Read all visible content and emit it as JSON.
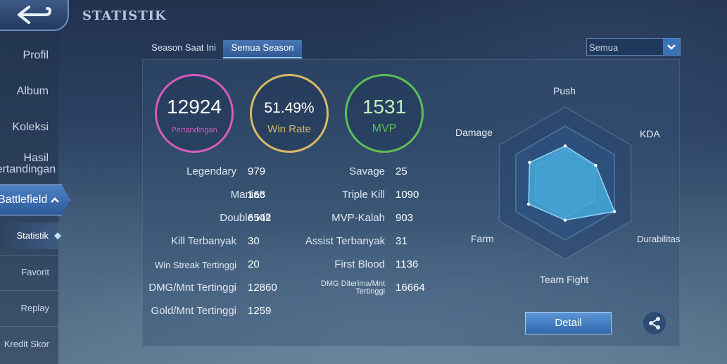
{
  "header": {
    "title": "STATISTIK"
  },
  "sidebar": {
    "items": [
      {
        "label": "Profil"
      },
      {
        "label": "Album"
      },
      {
        "label": "Koleksi"
      },
      {
        "label_line1": "Hasil",
        "label_line2": "Pertandingan"
      },
      {
        "label": "Battlefield"
      }
    ],
    "sub_items": [
      {
        "label": "Statistik"
      },
      {
        "label": "Favorit"
      },
      {
        "label": "Replay"
      },
      {
        "label": "Kredit Skor"
      }
    ]
  },
  "tabs": [
    {
      "label": "Season Saat Ini",
      "active": false
    },
    {
      "label": "Semua Season",
      "active": true
    }
  ],
  "filter": {
    "selected": "Semua"
  },
  "summary": {
    "matches": {
      "value": "12924",
      "label": "Pertandingan",
      "color": "#d65bbd"
    },
    "win_rate": {
      "value": "51.49%",
      "label": "Win Rate",
      "color": "#d9b866"
    },
    "mvp": {
      "value": "1531",
      "label": "MVP",
      "color": "#5bbf55"
    }
  },
  "stats_left": [
    {
      "label": "Legendary",
      "value": "979"
    },
    {
      "label": "Maniac",
      "value": "168"
    },
    {
      "label": "Double Kill",
      "value": "6542"
    },
    {
      "label": "Kill Terbanyak",
      "value": "30"
    },
    {
      "label": "Win Streak Tertinggi",
      "value": "20"
    },
    {
      "label": "DMG/Mnt Tertinggi",
      "value": "12860"
    },
    {
      "label": "Gold/Mnt Tertinggi",
      "value": "1259"
    }
  ],
  "stats_right": [
    {
      "label": "Savage",
      "value": "25"
    },
    {
      "label": "Triple Kill",
      "value": "1090"
    },
    {
      "label": "MVP-Kalah",
      "value": "903"
    },
    {
      "label": "Assist Terbanyak",
      "value": "31"
    },
    {
      "label": "First Blood",
      "value": "1136"
    },
    {
      "label_line1": "DMG Diterima/Mnt",
      "label_line2": "Tertinggi",
      "value": "16664"
    }
  ],
  "radar": {
    "axes": [
      "Push",
      "KDA",
      "Durabilitas",
      "Team Fight",
      "Farm",
      "Damage"
    ],
    "values": [
      0.65,
      0.62,
      1.0,
      0.65,
      0.74,
      0.72
    ],
    "fill_color": "#49b5e6"
  },
  "actions": {
    "detail_label": "Detail"
  }
}
